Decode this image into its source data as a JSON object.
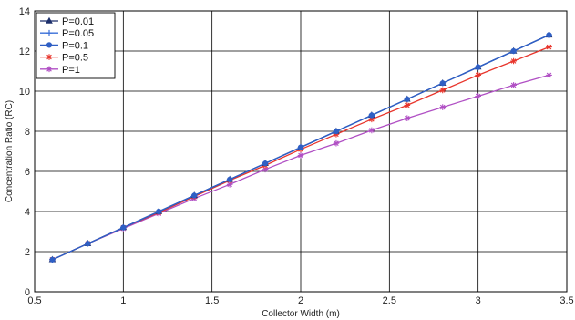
{
  "chart_data": {
    "type": "line",
    "title": "",
    "xlabel": "Collector Width (m)",
    "ylabel": "Concentration Ratio (RC)",
    "xlim": [
      0.5,
      3.5
    ],
    "ylim": [
      0,
      14
    ],
    "xticks": [
      "0.5",
      "1",
      "1.5",
      "2",
      "2.5",
      "3",
      "3.5"
    ],
    "yticks": [
      "0",
      "2",
      "4",
      "6",
      "8",
      "10",
      "12",
      "14"
    ],
    "grid": true,
    "legend_position": "top-left",
    "series": [
      {
        "name": "P=0.01",
        "color": "#1c2f6b",
        "marker": "triangle",
        "x": [
          0.6,
          0.8,
          1.0,
          1.2,
          1.4,
          1.6,
          1.8,
          2.0,
          2.2,
          2.4,
          2.6,
          2.8,
          3.0,
          3.2,
          3.4
        ],
        "y": [
          1.6,
          2.4,
          3.2,
          4.0,
          4.8,
          5.6,
          6.4,
          7.2,
          8.0,
          8.8,
          9.6,
          10.4,
          11.2,
          12.0,
          12.8
        ]
      },
      {
        "name": "P=0.05",
        "color": "#3a6fd8",
        "marker": "plus",
        "x": [
          0.6,
          0.8,
          1.0,
          1.2,
          1.4,
          1.6,
          1.8,
          2.0,
          2.2,
          2.4,
          2.6,
          2.8,
          3.0,
          3.2,
          3.4
        ],
        "y": [
          1.6,
          2.4,
          3.2,
          4.0,
          4.8,
          5.6,
          6.4,
          7.2,
          8.0,
          8.8,
          9.6,
          10.4,
          11.2,
          12.0,
          12.8
        ]
      },
      {
        "name": "P=0.1",
        "color": "#2f5fc4",
        "marker": "circle",
        "x": [
          0.6,
          0.8,
          1.0,
          1.2,
          1.4,
          1.6,
          1.8,
          2.0,
          2.2,
          2.4,
          2.6,
          2.8,
          3.0,
          3.2,
          3.4
        ],
        "y": [
          1.6,
          2.4,
          3.2,
          4.0,
          4.8,
          5.6,
          6.4,
          7.2,
          8.0,
          8.8,
          9.6,
          10.4,
          11.2,
          12.0,
          12.8
        ]
      },
      {
        "name": "P=0.5",
        "color": "#e8352c",
        "marker": "star",
        "x": [
          0.6,
          0.8,
          1.0,
          1.2,
          1.4,
          1.6,
          1.8,
          2.0,
          2.2,
          2.4,
          2.6,
          2.8,
          3.0,
          3.2,
          3.4
        ],
        "y": [
          1.6,
          2.4,
          3.2,
          3.95,
          4.75,
          5.55,
          6.3,
          7.1,
          7.85,
          8.6,
          9.3,
          10.05,
          10.8,
          11.5,
          12.2
        ]
      },
      {
        "name": "P=1",
        "color": "#b04fc4",
        "marker": "star",
        "x": [
          0.6,
          0.8,
          1.0,
          1.2,
          1.4,
          1.6,
          1.8,
          2.0,
          2.2,
          2.4,
          2.6,
          2.8,
          3.0,
          3.2,
          3.4
        ],
        "y": [
          1.6,
          2.4,
          3.15,
          3.9,
          4.65,
          5.35,
          6.1,
          6.8,
          7.4,
          8.05,
          8.65,
          9.2,
          9.75,
          10.3,
          10.8
        ]
      }
    ]
  }
}
